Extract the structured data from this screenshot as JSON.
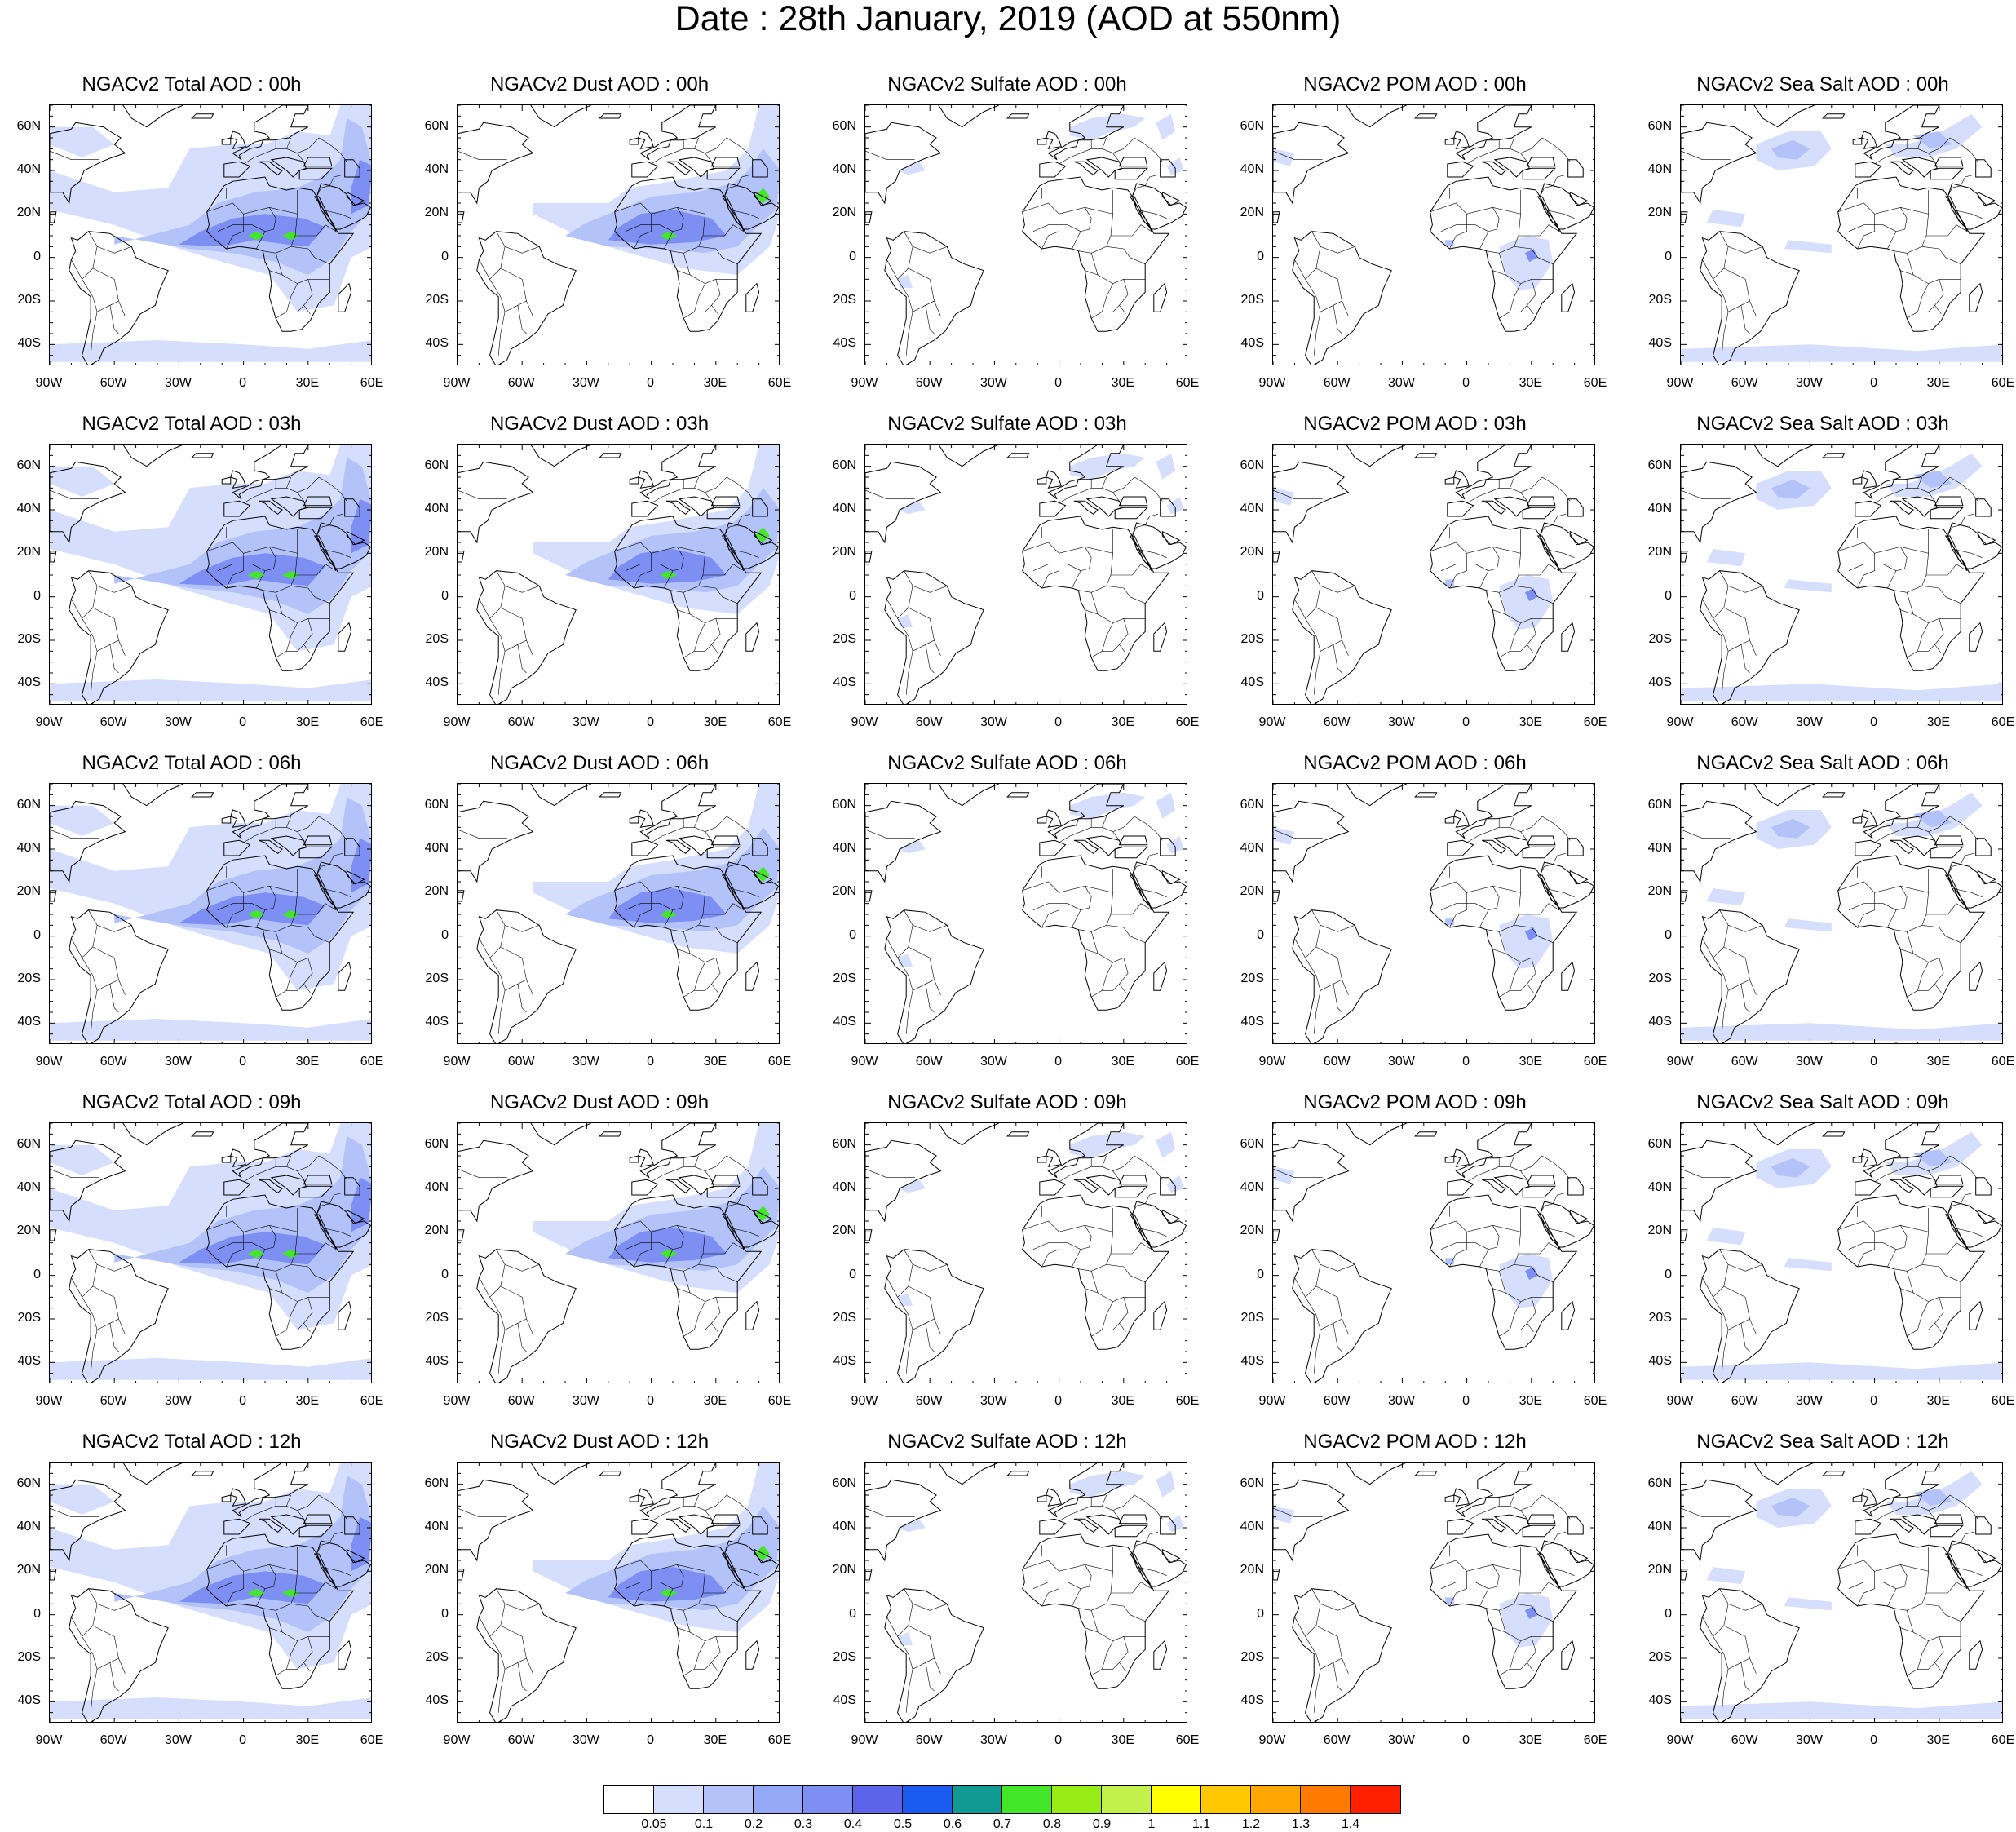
{
  "title": "Date : 28th January, 2019 (AOD at 550nm)",
  "lat_labels": [
    "60N",
    "40N",
    "20N",
    "0",
    "20S",
    "40S"
  ],
  "lon_labels": [
    "90W",
    "60W",
    "30W",
    "0",
    "30E",
    "60E"
  ],
  "rows": [
    [
      "NGACv2 Total AOD : 00h",
      "NGACv2 Dust AOD : 00h",
      "NGACv2 Sulfate AOD : 00h",
      "NGACv2 POM AOD : 00h",
      "NGACv2 Sea Salt AOD : 00h"
    ],
    [
      "NGACv2 Total AOD : 03h",
      "NGACv2 Dust AOD : 03h",
      "NGACv2 Sulfate AOD : 03h",
      "NGACv2 POM AOD : 03h",
      "NGACv2 Sea Salt AOD : 03h"
    ],
    [
      "NGACv2 Total AOD : 06h",
      "NGACv2 Dust AOD : 06h",
      "NGACv2 Sulfate AOD : 06h",
      "NGACv2 POM AOD : 06h",
      "NGACv2 Sea Salt AOD : 06h"
    ],
    [
      "NGACv2 Total AOD : 09h",
      "NGACv2 Dust AOD : 09h",
      "NGACv2 Sulfate AOD : 09h",
      "NGACv2 POM AOD : 09h",
      "NGACv2 Sea Salt  AOD : 09h"
    ],
    [
      "NGACv2 Total AOD  : 12h",
      "NGACv2 Dust AOD : 12h",
      "NGACv2 Sulfate AOD : 12h",
      "NGACv2 POM  AOD : 12h",
      "NGACv2 Sea Salt  AOD : 12h"
    ]
  ],
  "legend": {
    "labels": [
      "0.05",
      "0.1",
      "0.2",
      "0.3",
      "0.4",
      "0.5",
      "0.6",
      "0.7",
      "0.8",
      "0.9",
      "1",
      "1.1",
      "1.2",
      "1.3",
      "1.4"
    ],
    "colors": [
      "#ffffff",
      "#d5defc",
      "#b3c3fa",
      "#93a9f7",
      "#7d8ff3",
      "#5b64ea",
      "#1a5cf0",
      "#0f9a94",
      "#44e629",
      "#96ec14",
      "#c3f04a",
      "#ffff00",
      "#ffc800",
      "#ffa600",
      "#ff7a00",
      "#ff2000"
    ]
  },
  "colors": {
    "aerosol_light": "#d5defc",
    "aerosol_medium": "#b3c3fa",
    "aerosol_strong": "#7d8ff3",
    "aerosol_hot": "#44e629"
  }
}
